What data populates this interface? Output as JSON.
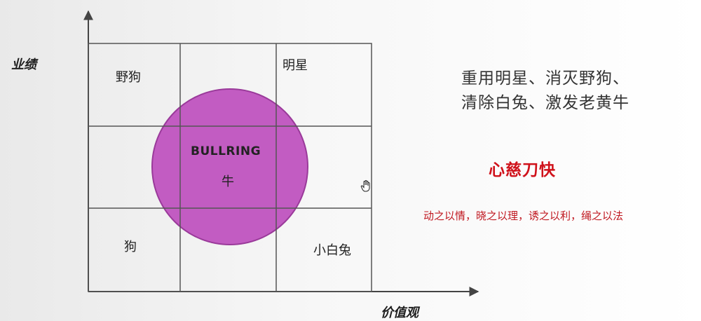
{
  "axes": {
    "y_label": "业绩",
    "x_label": "价值观"
  },
  "grid": {
    "top_left": "野狗",
    "top_right": "明星",
    "bottom_left": "狗",
    "bottom_right": "小白兔",
    "center_en": "BULLRING",
    "center_cn": "牛"
  },
  "colors": {
    "circle_fill": "#c25cc2",
    "circle_stroke": "#9a3a9a",
    "grid_line": "#555555",
    "red_text": "#d0121b"
  },
  "right_panel": {
    "strategy_line1": "重用明星、消灭野狗、",
    "strategy_line2": "清除白兔、激发老黄牛",
    "motto": "心慈刀快",
    "methods": "动之以情，晓之以理，诱之以利，绳之以法"
  },
  "icons": {
    "cursor": "hand-cursor-icon"
  }
}
